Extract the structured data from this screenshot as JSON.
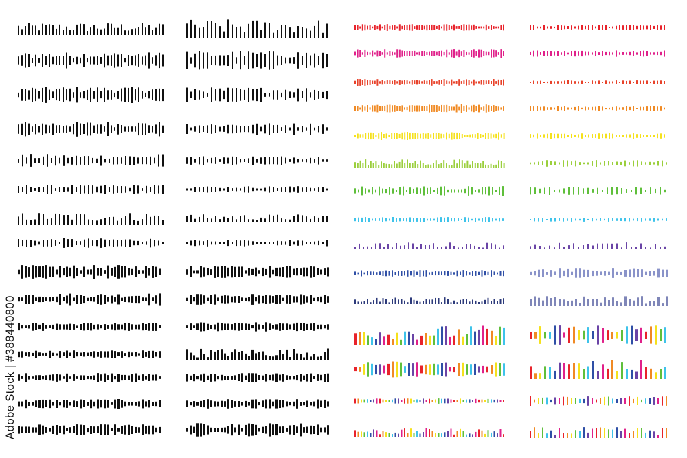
{
  "watermark": {
    "text": "Adobe Stock | #388440800"
  },
  "columns": [
    {
      "name": "black-thin-column",
      "rows": 15
    },
    {
      "name": "black-thick-column",
      "rows": 15
    },
    {
      "name": "color-dense-column",
      "rows": 15,
      "row_colors": [
        "#e8232b",
        "#e0218a",
        "#e8422a",
        "#f08a24",
        "#f5e11c",
        "#9bcf3c",
        "#5fbf3b",
        "#3ec3ea",
        "#6a44a6",
        "#2f4fa6",
        "#2c3a7a",
        "multicolor",
        "multicolor",
        "multicolor",
        "multicolor"
      ]
    },
    {
      "name": "color-sparse-column",
      "rows": 15,
      "row_colors": [
        "#e8232b",
        "#e0218a",
        "#e8422a",
        "#f08a24",
        "#f5e11c",
        "#9bcf3c",
        "#5fbf3b",
        "#3ec3ea",
        "#6a44a6",
        "#8a93c9",
        "#7f86b8",
        "multicolor",
        "multicolor",
        "multicolor",
        "multicolor"
      ]
    }
  ],
  "multicolor_palette": [
    "#e8232b",
    "#f08a24",
    "#f5e11c",
    "#5fbf3b",
    "#3ec3ea",
    "#2f4fa6",
    "#6a44a6",
    "#e0218a"
  ],
  "black_color": "#111111"
}
